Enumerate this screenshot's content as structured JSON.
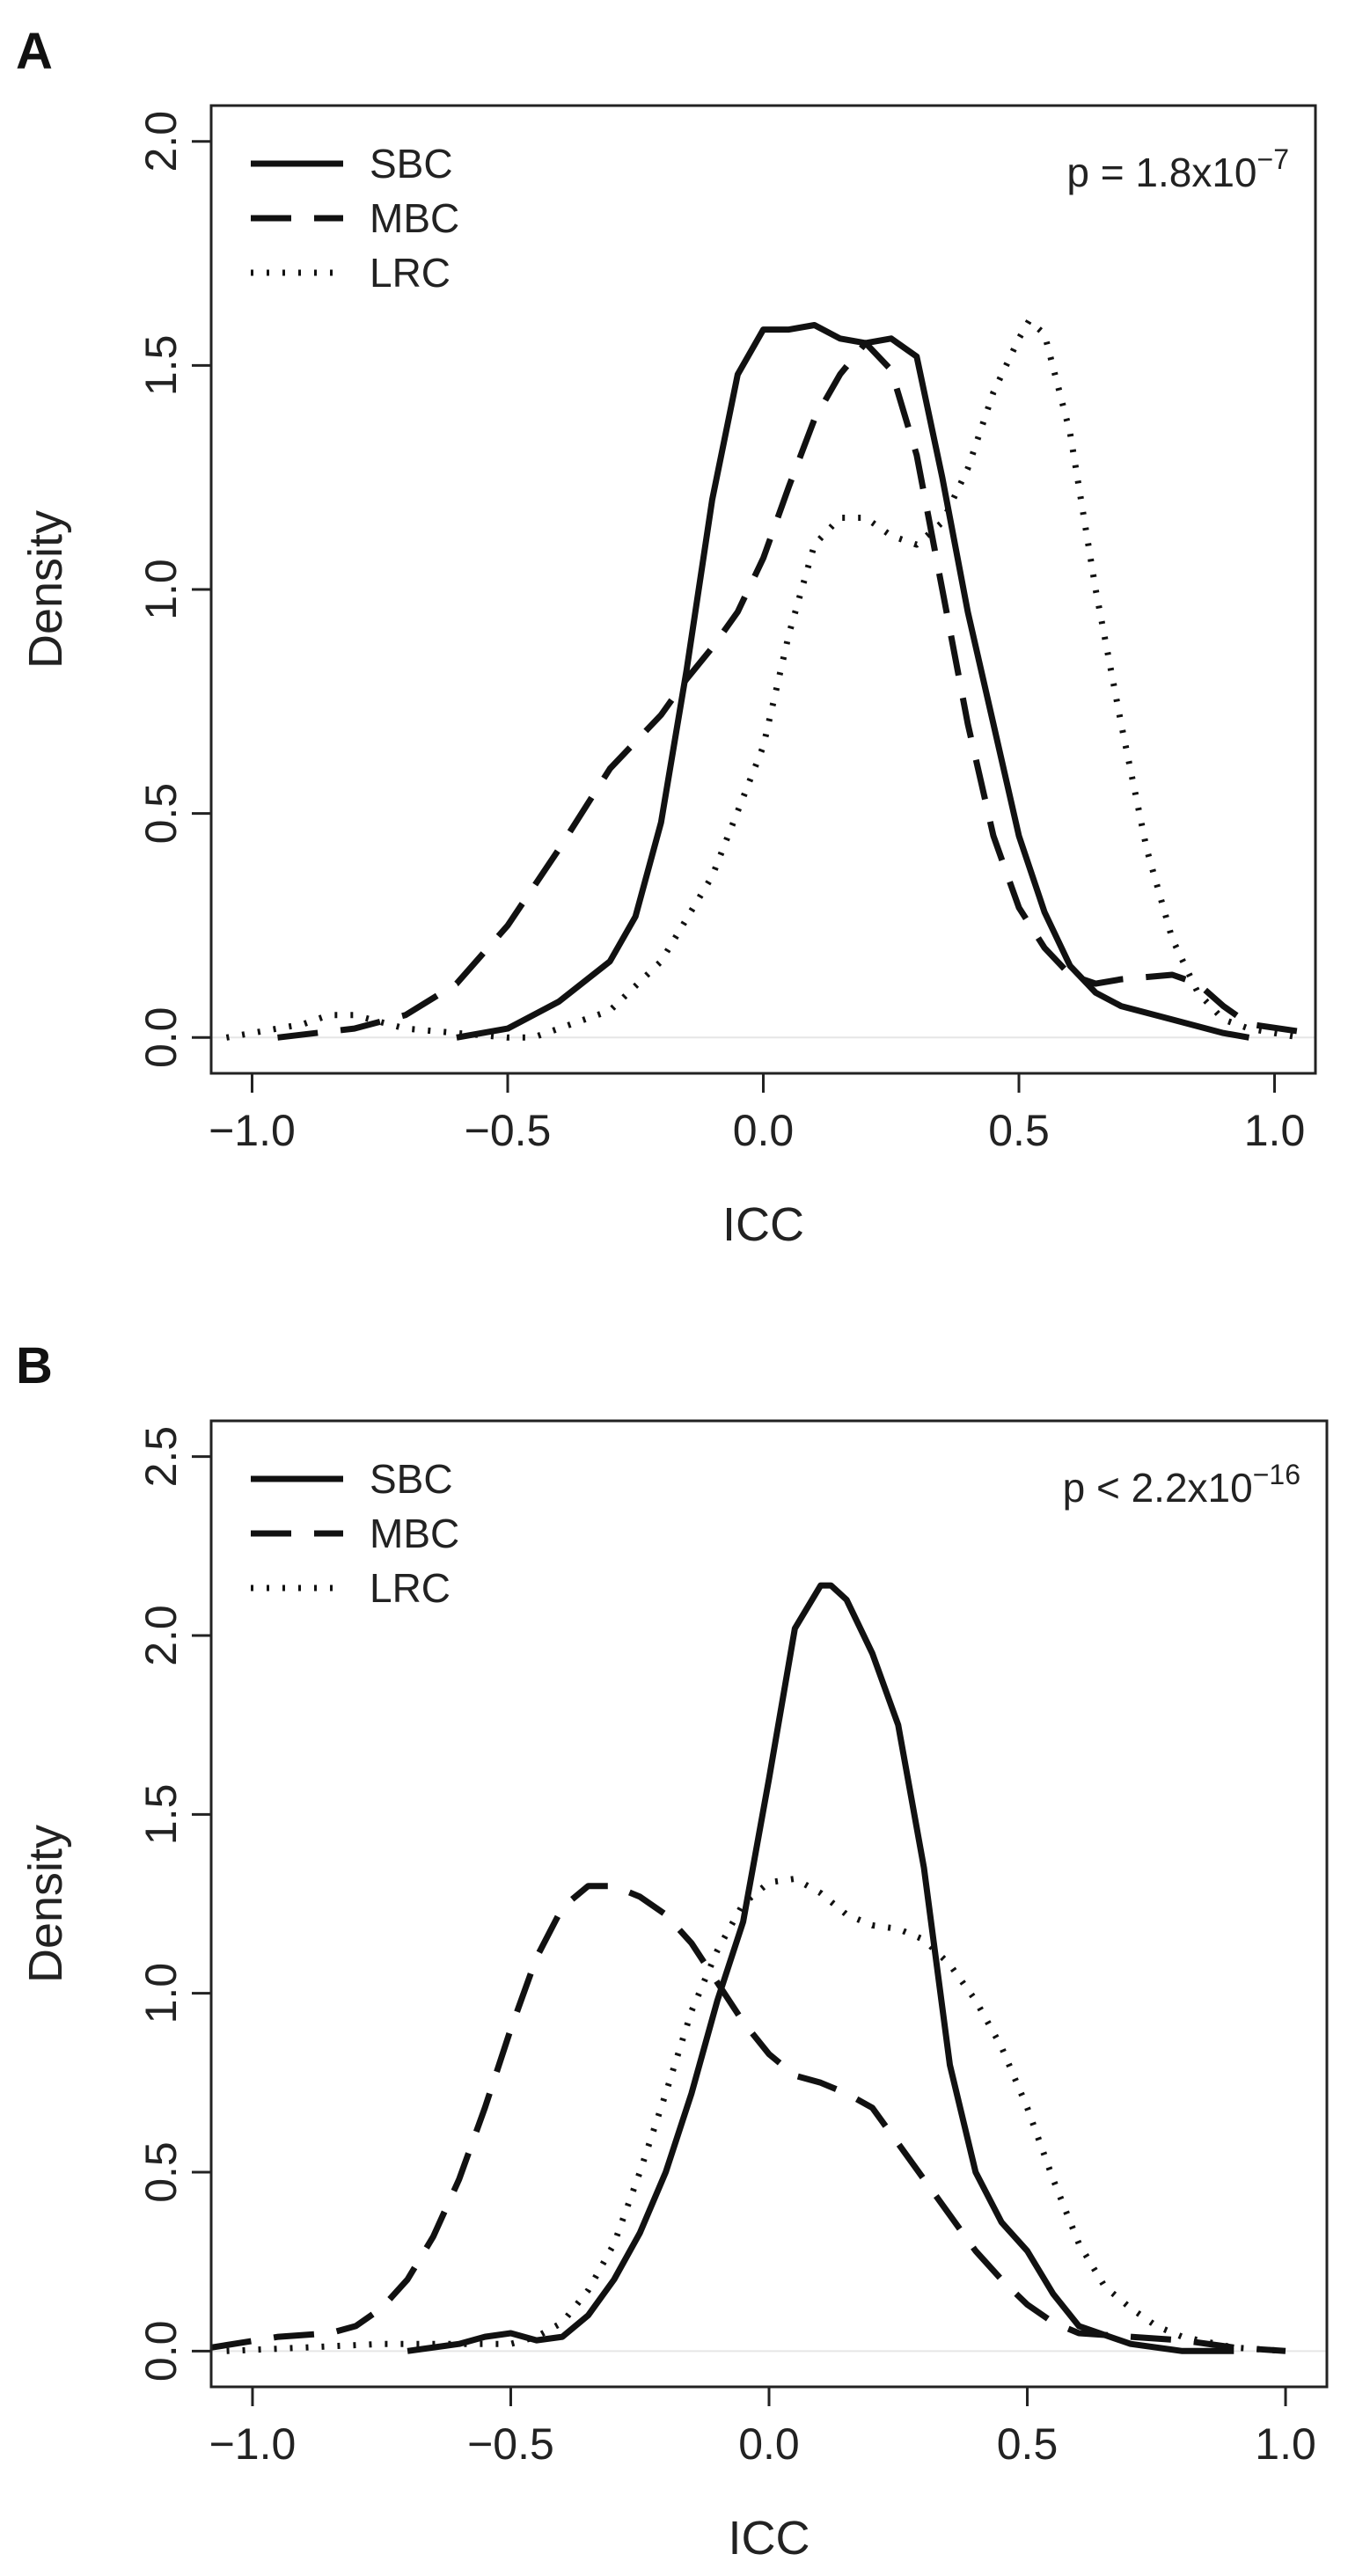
{
  "chart_data": [
    {
      "panel": "A",
      "type": "line",
      "xlabel": "ICC",
      "ylabel": "Density",
      "xlim": [
        -1.08,
        1.08
      ],
      "ylim": [
        -0.08,
        2.08
      ],
      "xticks": [
        -1.0,
        -0.5,
        0.0,
        0.5,
        1.0
      ],
      "xtick_labels": [
        "−1.0",
        "−0.5",
        "0.0",
        "0.5",
        "1.0"
      ],
      "yticks": [
        0.0,
        0.5,
        1.0,
        1.5,
        2.0
      ],
      "ytick_labels": [
        "0.0",
        "0.5",
        "1.0",
        "1.5",
        "2.0"
      ],
      "p_text": "p = 1.8x10",
      "p_exp": "−7",
      "legend_position": "top-left",
      "series": [
        {
          "name": "SBC",
          "style": "solid",
          "x": [
            -0.6,
            -0.5,
            -0.4,
            -0.3,
            -0.25,
            -0.2,
            -0.15,
            -0.1,
            -0.05,
            0.0,
            0.05,
            0.1,
            0.15,
            0.2,
            0.25,
            0.3,
            0.35,
            0.4,
            0.45,
            0.5,
            0.55,
            0.6,
            0.65,
            0.7,
            0.8,
            0.9,
            0.95
          ],
          "values": [
            0.0,
            0.02,
            0.08,
            0.17,
            0.27,
            0.48,
            0.82,
            1.2,
            1.48,
            1.58,
            1.58,
            1.59,
            1.56,
            1.55,
            1.56,
            1.52,
            1.25,
            0.95,
            0.7,
            0.45,
            0.28,
            0.16,
            0.1,
            0.07,
            0.04,
            0.01,
            0.0
          ]
        },
        {
          "name": "MBC",
          "style": "dashed",
          "x": [
            -0.95,
            -0.8,
            -0.7,
            -0.6,
            -0.5,
            -0.4,
            -0.3,
            -0.2,
            -0.15,
            -0.1,
            -0.05,
            0.0,
            0.05,
            0.1,
            0.15,
            0.2,
            0.25,
            0.3,
            0.35,
            0.4,
            0.45,
            0.5,
            0.55,
            0.6,
            0.65,
            0.7,
            0.8,
            0.85,
            0.9,
            0.95,
            1.07
          ],
          "values": [
            0.0,
            0.02,
            0.05,
            0.12,
            0.25,
            0.42,
            0.6,
            0.72,
            0.8,
            0.87,
            0.95,
            1.07,
            1.23,
            1.38,
            1.48,
            1.55,
            1.49,
            1.3,
            1.0,
            0.7,
            0.45,
            0.29,
            0.2,
            0.14,
            0.12,
            0.13,
            0.14,
            0.12,
            0.07,
            0.03,
            0.01
          ]
        },
        {
          "name": "LRC",
          "style": "dotted",
          "x": [
            -1.05,
            -0.9,
            -0.85,
            -0.8,
            -0.7,
            -0.6,
            -0.5,
            -0.45,
            -0.4,
            -0.3,
            -0.2,
            -0.1,
            0.0,
            0.05,
            0.1,
            0.15,
            0.2,
            0.25,
            0.3,
            0.35,
            0.4,
            0.45,
            0.5,
            0.52,
            0.55,
            0.6,
            0.65,
            0.7,
            0.75,
            0.8,
            0.85,
            0.9,
            0.95,
            1.05
          ],
          "values": [
            0.0,
            0.03,
            0.05,
            0.05,
            0.02,
            0.01,
            0.0,
            0.0,
            0.02,
            0.06,
            0.17,
            0.36,
            0.65,
            0.9,
            1.1,
            1.16,
            1.16,
            1.12,
            1.1,
            1.15,
            1.27,
            1.44,
            1.56,
            1.6,
            1.57,
            1.35,
            1.0,
            0.7,
            0.42,
            0.22,
            0.1,
            0.04,
            0.02,
            0.0
          ]
        }
      ]
    },
    {
      "panel": "B",
      "type": "line",
      "xlabel": "ICC",
      "ylabel": "Density",
      "xlim": [
        -1.08,
        1.08
      ],
      "ylim": [
        -0.1,
        2.6
      ],
      "xticks": [
        -1.0,
        -0.5,
        0.0,
        0.5,
        1.0
      ],
      "xtick_labels": [
        "−1.0",
        "−0.5",
        "0.0",
        "0.5",
        "1.0"
      ],
      "yticks": [
        0.0,
        0.5,
        1.0,
        1.5,
        2.0,
        2.5
      ],
      "ytick_labels": [
        "0.0",
        "0.5",
        "1.0",
        "1.5",
        "2.0",
        "2.5"
      ],
      "p_text": "p < 2.2x10",
      "p_exp": "−16",
      "legend_position": "top-left",
      "series": [
        {
          "name": "SBC",
          "style": "solid",
          "x": [
            -0.7,
            -0.6,
            -0.55,
            -0.5,
            -0.45,
            -0.4,
            -0.35,
            -0.3,
            -0.25,
            -0.2,
            -0.15,
            -0.1,
            -0.05,
            0.0,
            0.05,
            0.1,
            0.12,
            0.15,
            0.2,
            0.25,
            0.3,
            0.35,
            0.4,
            0.45,
            0.5,
            0.55,
            0.6,
            0.7,
            0.8,
            0.9
          ],
          "values": [
            0.0,
            0.02,
            0.04,
            0.05,
            0.03,
            0.04,
            0.1,
            0.2,
            0.33,
            0.5,
            0.72,
            0.98,
            1.2,
            1.6,
            2.02,
            2.14,
            2.14,
            2.1,
            1.95,
            1.75,
            1.35,
            0.8,
            0.5,
            0.36,
            0.28,
            0.16,
            0.07,
            0.02,
            0.0,
            0.0
          ]
        },
        {
          "name": "MBC",
          "style": "dashed",
          "x": [
            -1.08,
            -0.95,
            -0.85,
            -0.8,
            -0.75,
            -0.7,
            -0.65,
            -0.6,
            -0.55,
            -0.5,
            -0.45,
            -0.4,
            -0.35,
            -0.3,
            -0.25,
            -0.2,
            -0.15,
            -0.1,
            -0.05,
            0.0,
            0.05,
            0.1,
            0.15,
            0.2,
            0.25,
            0.3,
            0.35,
            0.4,
            0.45,
            0.5,
            0.55,
            0.6,
            0.7,
            0.8,
            0.9,
            1.0
          ],
          "values": [
            0.01,
            0.04,
            0.05,
            0.07,
            0.12,
            0.2,
            0.32,
            0.48,
            0.68,
            0.9,
            1.1,
            1.24,
            1.3,
            1.3,
            1.27,
            1.22,
            1.14,
            1.03,
            0.92,
            0.83,
            0.77,
            0.75,
            0.72,
            0.68,
            0.58,
            0.48,
            0.38,
            0.28,
            0.2,
            0.13,
            0.08,
            0.05,
            0.04,
            0.03,
            0.01,
            0.0
          ]
        },
        {
          "name": "LRC",
          "style": "dotted",
          "x": [
            -1.05,
            -0.9,
            -0.75,
            -0.6,
            -0.5,
            -0.45,
            -0.4,
            -0.35,
            -0.3,
            -0.25,
            -0.2,
            -0.15,
            -0.1,
            -0.05,
            0.0,
            0.05,
            0.1,
            0.15,
            0.2,
            0.25,
            0.3,
            0.35,
            0.4,
            0.45,
            0.5,
            0.55,
            0.6,
            0.65,
            0.7,
            0.75,
            0.8,
            0.9,
            1.0
          ],
          "values": [
            0.0,
            0.01,
            0.02,
            0.02,
            0.02,
            0.04,
            0.08,
            0.17,
            0.3,
            0.5,
            0.72,
            0.95,
            1.12,
            1.25,
            1.31,
            1.32,
            1.28,
            1.22,
            1.19,
            1.18,
            1.15,
            1.08,
            0.98,
            0.85,
            0.68,
            0.48,
            0.3,
            0.18,
            0.12,
            0.07,
            0.04,
            0.01,
            0.0
          ]
        }
      ]
    }
  ]
}
